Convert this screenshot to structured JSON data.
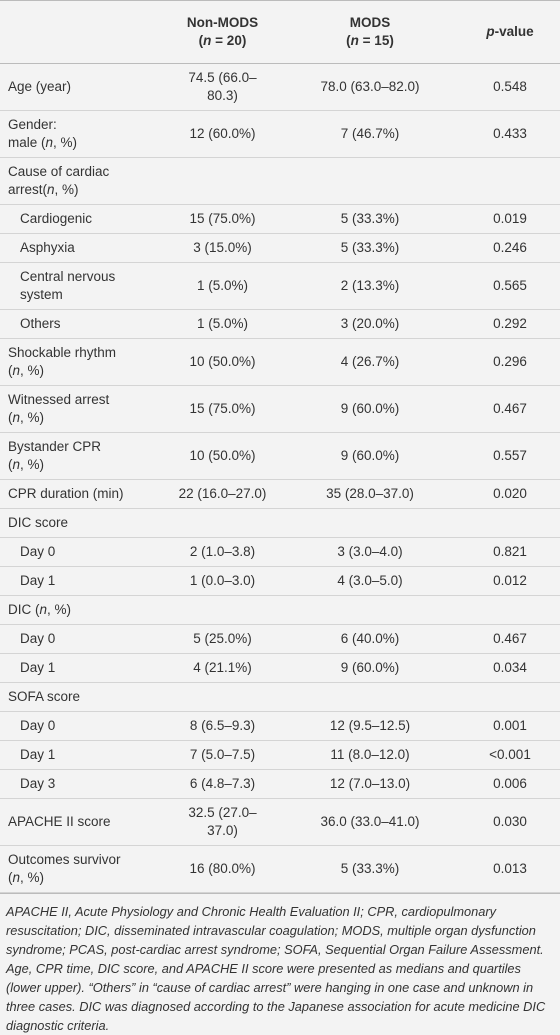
{
  "table": {
    "header": [
      [],
      [
        [
          "Non-MODS"
        ],
        [
          "(",
          {
            "text": "n",
            "italic": true
          },
          " = 20)"
        ]
      ],
      [
        [
          "MODS"
        ],
        [
          "(",
          {
            "text": "n",
            "italic": true
          },
          " = 15)"
        ]
      ],
      [
        [
          {
            "text": "p",
            "italic": true
          },
          "-value"
        ]
      ]
    ],
    "rows": [
      {
        "label": [
          [
            "Age (year)"
          ]
        ],
        "values": [
          "74.5 (66.0–80.3)",
          "78.0 (63.0–82.0)",
          "0.548"
        ]
      },
      {
        "label": [
          [
            "Gender:"
          ],
          [
            "male (",
            {
              "text": "n",
              "italic": true
            },
            ", %)"
          ]
        ],
        "values": [
          "12 (60.0%)",
          "7 (46.7%)",
          "0.433"
        ]
      },
      {
        "label": [
          [
            "Cause of cardiac arrest(",
            {
              "text": "n",
              "italic": true
            },
            ", %)"
          ]
        ],
        "values": []
      },
      {
        "label": [
          [
            "Cardiogenic"
          ]
        ],
        "indent": true,
        "values": [
          "15 (75.0%)",
          "5 (33.3%)",
          "0.019"
        ]
      },
      {
        "label": [
          [
            "Asphyxia"
          ]
        ],
        "indent": true,
        "values": [
          "3 (15.0%)",
          "5 (33.3%)",
          "0.246"
        ]
      },
      {
        "label": [
          [
            "Central nervous"
          ],
          [
            "system"
          ]
        ],
        "indent": true,
        "values": [
          "1 (5.0%)",
          "2 (13.3%)",
          "0.565"
        ]
      },
      {
        "label": [
          [
            "Others"
          ]
        ],
        "indent": true,
        "values": [
          "1 (5.0%)",
          "3 (20.0%)",
          "0.292"
        ]
      },
      {
        "label": [
          [
            "Shockable rhythm"
          ],
          [
            "(",
            {
              "text": "n",
              "italic": true
            },
            ", %)"
          ]
        ],
        "values": [
          "10 (50.0%)",
          "4 (26.7%)",
          "0.296"
        ]
      },
      {
        "label": [
          [
            "Witnessed arrest"
          ],
          [
            "(",
            {
              "text": "n",
              "italic": true
            },
            ", %)"
          ]
        ],
        "values": [
          "15 (75.0%)",
          "9 (60.0%)",
          "0.467"
        ]
      },
      {
        "label": [
          [
            "Bystander CPR"
          ],
          [
            "(",
            {
              "text": "n",
              "italic": true
            },
            ", %)"
          ]
        ],
        "values": [
          "10 (50.0%)",
          "9 (60.0%)",
          "0.557"
        ]
      },
      {
        "label": [
          [
            "CPR duration (min)"
          ]
        ],
        "values": [
          "22 (16.0–27.0)",
          "35 (28.0–37.0)",
          "0.020"
        ]
      },
      {
        "label": [
          [
            "DIC score"
          ]
        ],
        "values": []
      },
      {
        "label": [
          [
            "Day 0"
          ]
        ],
        "indent": true,
        "values": [
          "2 (1.0–3.8)",
          "3 (3.0–4.0)",
          "0.821"
        ]
      },
      {
        "label": [
          [
            "Day 1"
          ]
        ],
        "indent": true,
        "values": [
          "1 (0.0–3.0)",
          "4 (3.0–5.0)",
          "0.012"
        ]
      },
      {
        "label": [
          [
            "DIC (",
            {
              "text": "n",
              "italic": true
            },
            ", %)"
          ]
        ],
        "values": []
      },
      {
        "label": [
          [
            "Day 0"
          ]
        ],
        "indent": true,
        "values": [
          "5 (25.0%)",
          "6 (40.0%)",
          "0.467"
        ]
      },
      {
        "label": [
          [
            "Day 1"
          ]
        ],
        "indent": true,
        "values": [
          "4 (21.1%)",
          "9 (60.0%)",
          "0.034"
        ]
      },
      {
        "label": [
          [
            "SOFA score"
          ]
        ],
        "values": []
      },
      {
        "label": [
          [
            "Day 0"
          ]
        ],
        "indent": true,
        "values": [
          "8 (6.5–9.3)",
          "12 (9.5–12.5)",
          "0.001"
        ]
      },
      {
        "label": [
          [
            "Day 1"
          ]
        ],
        "indent": true,
        "values": [
          "7 (5.0–7.5)",
          "11 (8.0–12.0)",
          "<0.001"
        ]
      },
      {
        "label": [
          [
            "Day 3"
          ]
        ],
        "indent": true,
        "values": [
          "6 (4.8–7.3)",
          "12 (7.0–13.0)",
          "0.006"
        ]
      },
      {
        "label": [
          [
            "APACHE II score"
          ]
        ],
        "values": [
          "32.5 (27.0–37.0)",
          "36.0 (33.0–41.0)",
          "0.030"
        ]
      },
      {
        "label": [
          [
            "Outcomes survivor"
          ],
          [
            "(",
            {
              "text": "n",
              "italic": true
            },
            ", %)"
          ]
        ],
        "values": [
          "16 (80.0%)",
          "5 (33.3%)",
          "0.013"
        ]
      }
    ]
  },
  "footnote": "APACHE II, Acute Physiology and Chronic Health Evaluation II; CPR, cardiopulmonary resuscitation; DIC, disseminated intravascular coagulation; MODS, multiple organ dysfunction syndrome; PCAS, post-cardiac arrest syndrome; SOFA, Sequential Organ Failure Assessment. Age, CPR time, DIC score, and APACHE II score were presented as medians and quartiles (lower upper). “Others” in “cause of cardiac arrest” were hanging in one case and unknown in three cases. DIC was diagnosed according to the Japanese association for acute medicine DIC diagnostic criteria."
}
